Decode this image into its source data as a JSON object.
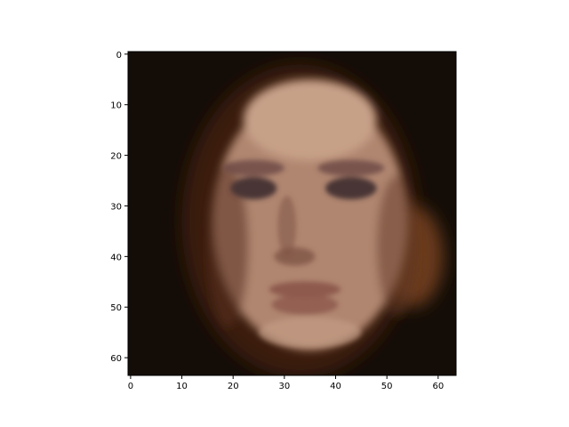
{
  "chart_data": {
    "type": "heatmap",
    "image_kind": "rgb face image (64x64 px)",
    "image_shape": [
      64,
      64
    ],
    "xlim": [
      -0.5,
      63.5
    ],
    "ylim": [
      63.5,
      -0.5
    ],
    "y_axis_inverted": true,
    "x_ticks": [
      0,
      10,
      20,
      30,
      40,
      50,
      60
    ],
    "y_ticks": [
      0,
      10,
      20,
      30,
      40,
      50,
      60
    ],
    "x_tick_labels": [
      "0",
      "10",
      "20",
      "30",
      "40",
      "50",
      "60"
    ],
    "y_tick_labels": [
      "0",
      "10",
      "20",
      "30",
      "40",
      "50",
      "60"
    ],
    "grid": false,
    "title": "",
    "xlabel": "",
    "ylabel": "",
    "palette": {
      "background": "#140d07",
      "hair": "#3a1a0e",
      "skin": "#b08670",
      "skin_light": "#c7a088",
      "shadow": "#5a3022",
      "eye": "#4a3436",
      "brow": "#6a4844",
      "lips": "#8e5a4e",
      "nose_shadow": "#7e5444"
    }
  }
}
